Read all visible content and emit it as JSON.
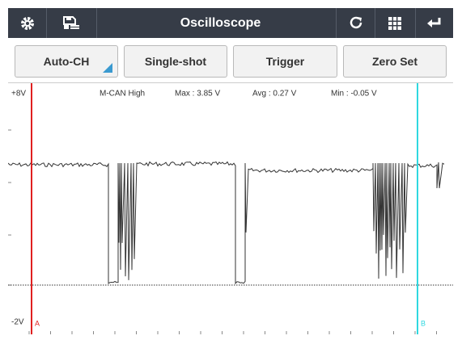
{
  "toolbar": {
    "title": "Oscilloscope"
  },
  "buttons": [
    "Auto-CH",
    "Single-shot",
    "Trigger",
    "Zero Set"
  ],
  "scope": {
    "y_max_label": "+8V",
    "y_min_label": "-2V",
    "channel": "M-CAN High",
    "max": "Max : 3.85 V",
    "avg": "Avg : 0.27 V",
    "min": "Min : -0.05 V",
    "cursor_a": "A",
    "cursor_b": "B"
  }
}
